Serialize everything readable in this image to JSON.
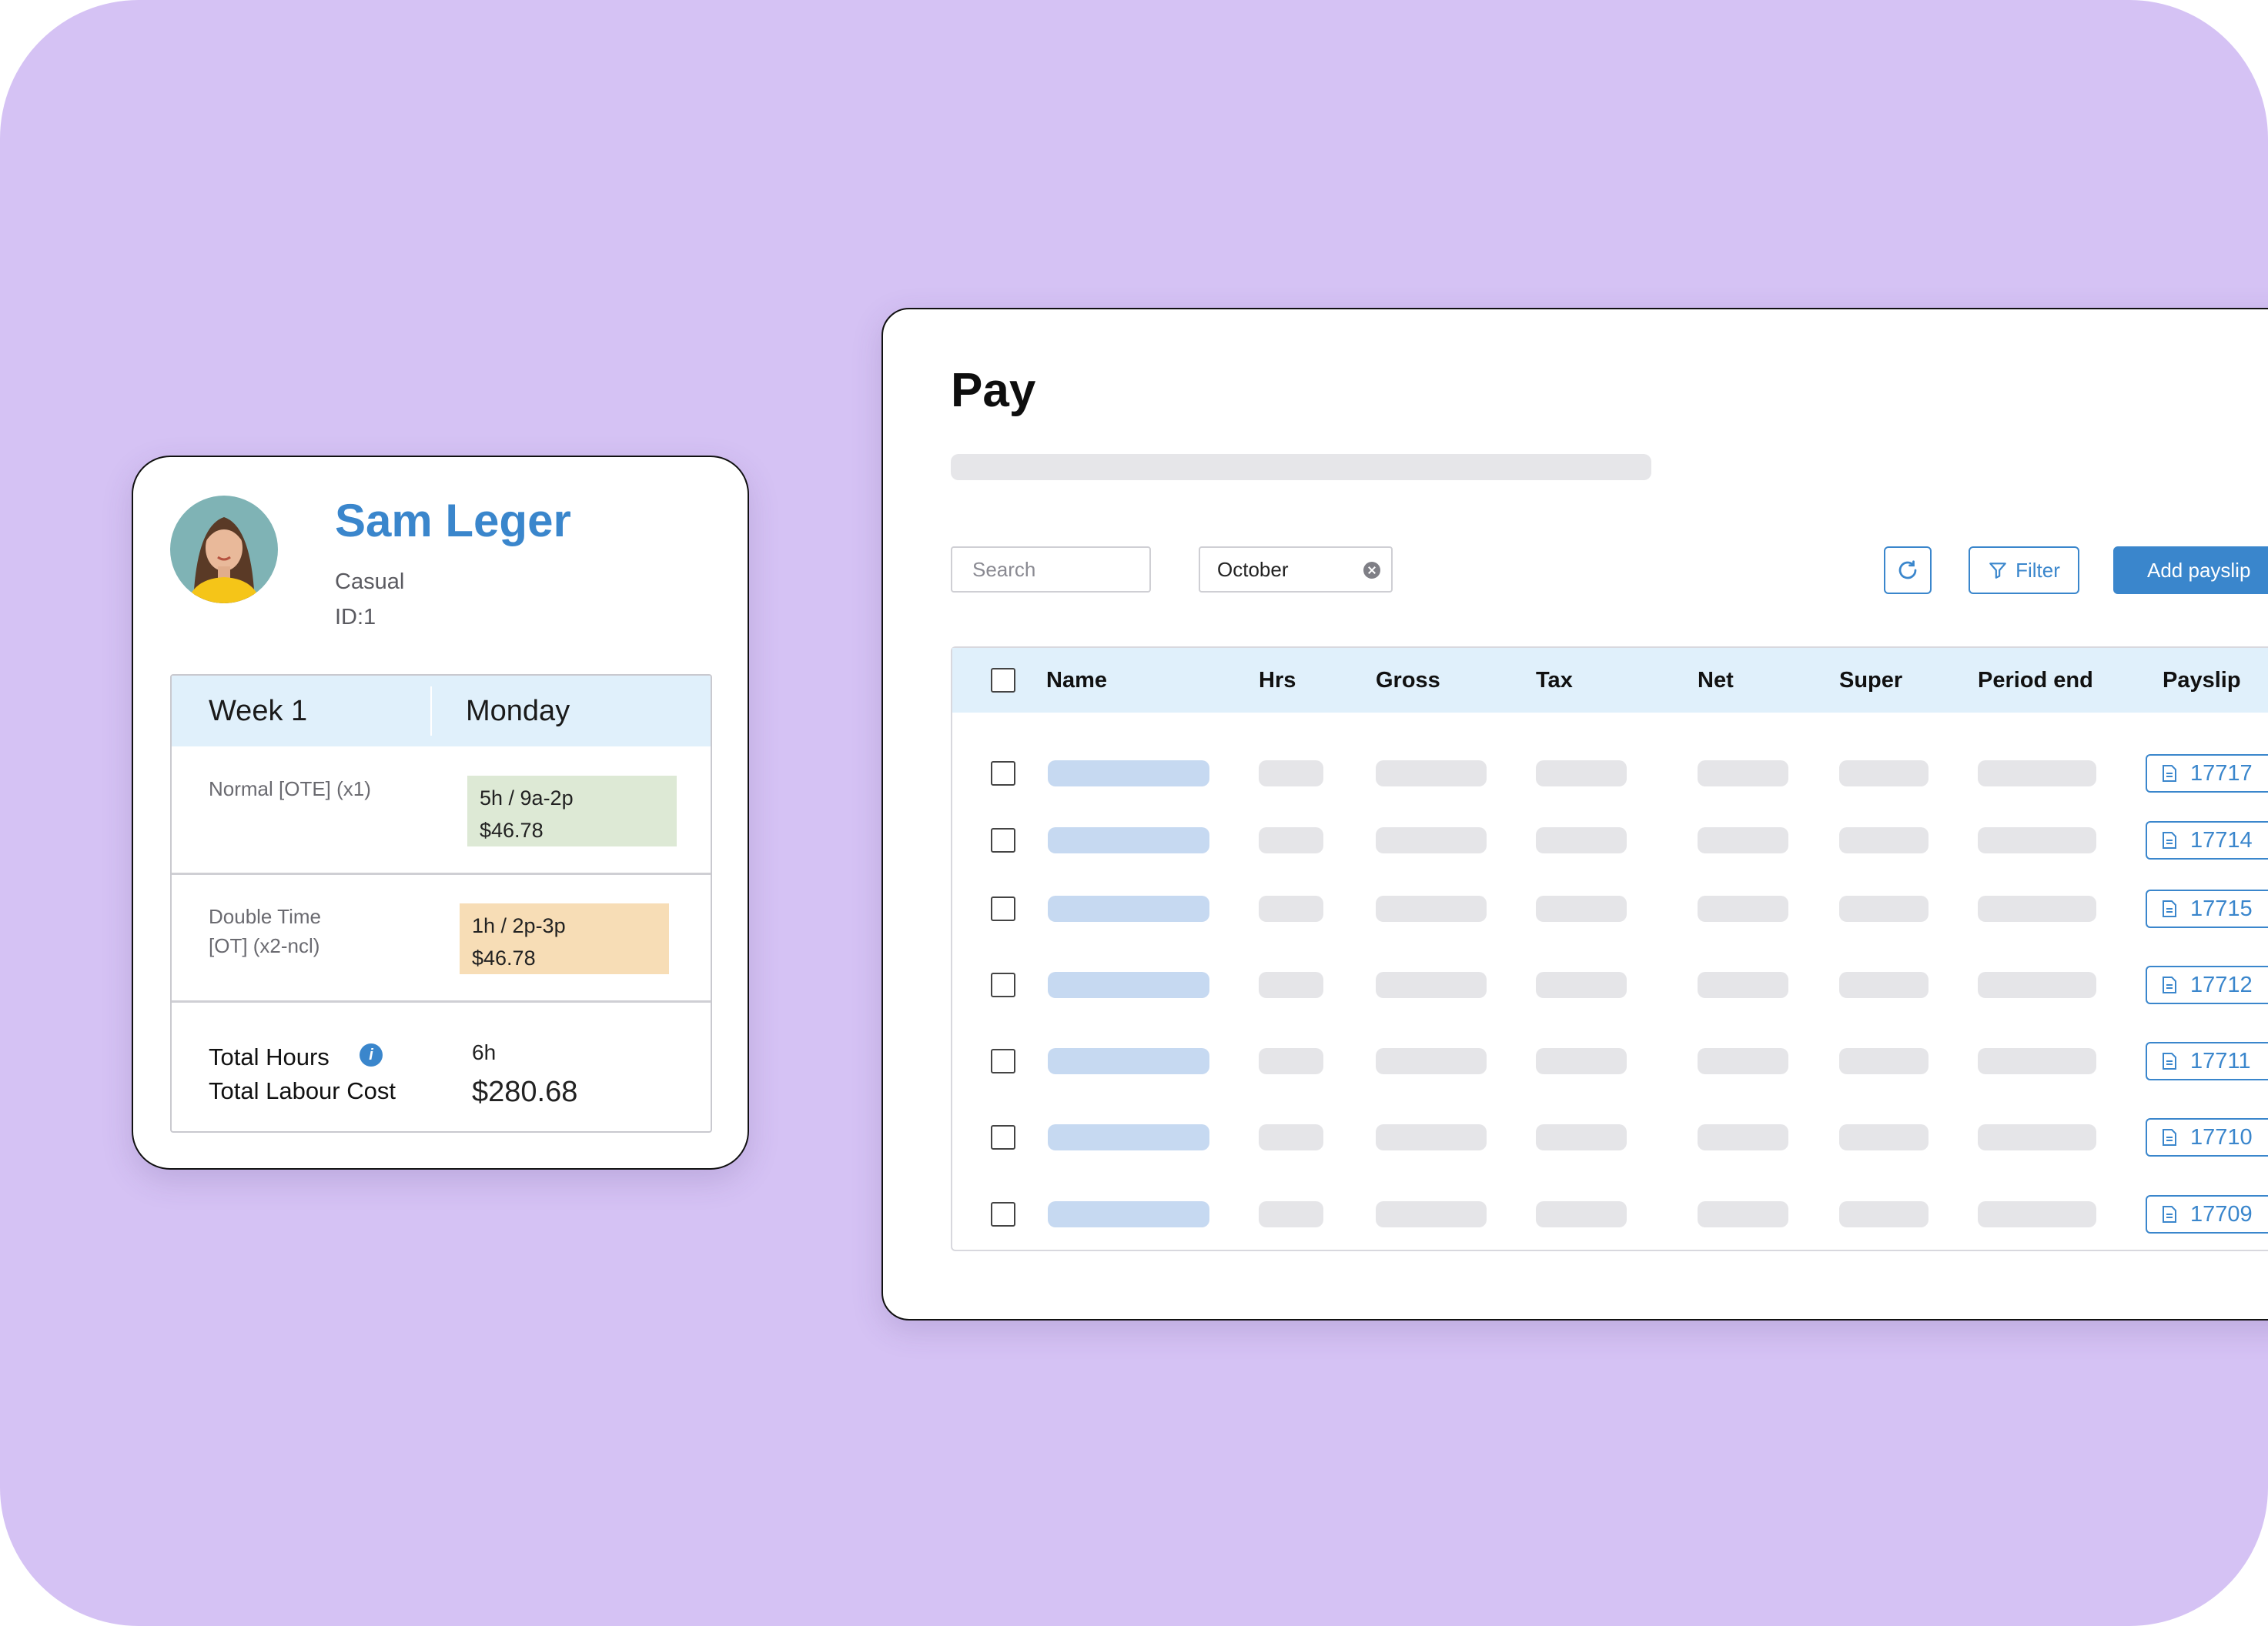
{
  "pay": {
    "title": "Pay",
    "search_placeholder": "Search",
    "month_filter": "October",
    "filter_label": "Filter",
    "add_payslip_label": "Add payslip",
    "columns": [
      "Name",
      "Hrs",
      "Gross",
      "Tax",
      "Net",
      "Super",
      "Period end",
      "Payslip"
    ],
    "payslips": [
      "17717",
      "17714",
      "17715",
      "17712",
      "17711",
      "17710",
      "17709"
    ]
  },
  "employee": {
    "name": "Sam Leger",
    "type": "Casual",
    "id": "ID:1",
    "week": "Week 1",
    "day": "Monday",
    "normal_label": "Normal [OTE] (x1)",
    "normal_time": "5h / 9a-2p",
    "normal_cost": "$46.78",
    "double_label_1": "Double Time",
    "double_label_2": "[OT] (x2-ncl)",
    "double_time": "1h / 2p-3p",
    "double_cost": "$46.78",
    "total_hours_label": "Total Hours",
    "total_hours": "6h",
    "total_cost_label": "Total Labour Cost",
    "total_cost": "$280.68"
  },
  "colors": {
    "background": "#d5c2f4",
    "accent": "#3a86cc",
    "header_bg": "#e0f0fb",
    "green_tag": "#dde9d5",
    "orange_tag": "#f7ddb6"
  },
  "icons": [
    "clear-icon",
    "refresh-icon",
    "filter-icon",
    "document-icon",
    "info-icon",
    "avatar"
  ]
}
